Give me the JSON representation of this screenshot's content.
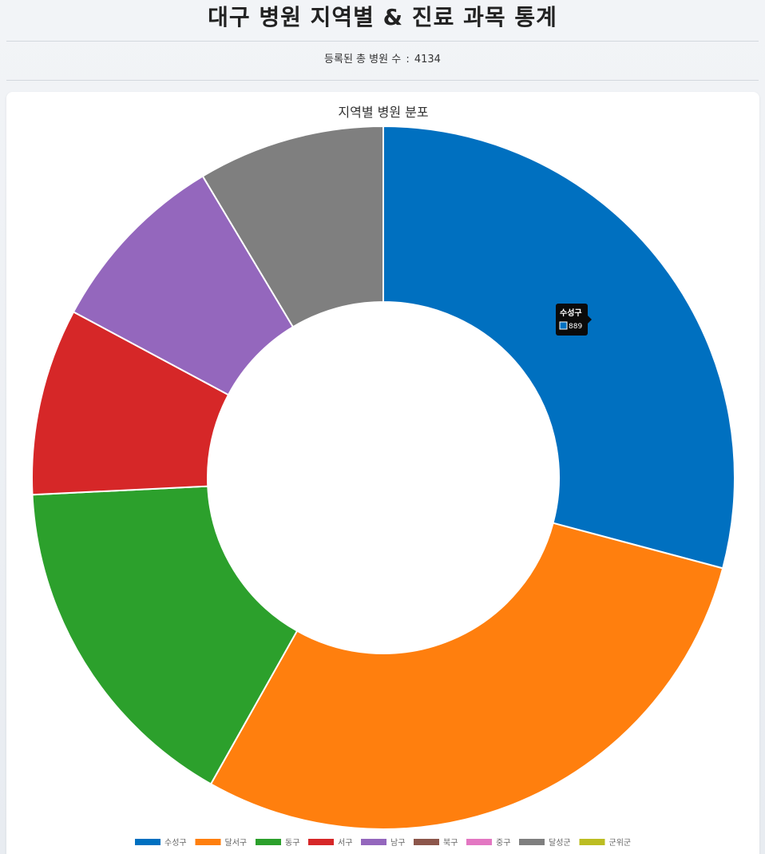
{
  "header": {
    "title": "대구 병원 지역별 & 진료 과목 통계",
    "total_label": "등록된 총 병원 수",
    "total_separator": ":",
    "total_value": "4134"
  },
  "chart_data": {
    "type": "pie",
    "variant": "doughnut",
    "title": "지역별 병원 분포",
    "categories": [
      "수성구",
      "달서구",
      "동구",
      "서구",
      "남구",
      "북구",
      "중구",
      "달성군",
      "군위군"
    ],
    "values": [
      889,
      885,
      490,
      262,
      262,
      0,
      0,
      262,
      0
    ],
    "colors": [
      "#0070c0",
      "#ff7f0e",
      "#2ca02c",
      "#d62728",
      "#9467bd",
      "#8c564b",
      "#e377c2",
      "#7f7f7f",
      "#bcbd22"
    ],
    "legend_position": "bottom",
    "tooltip": {
      "category": "수성구",
      "value": "889"
    }
  }
}
